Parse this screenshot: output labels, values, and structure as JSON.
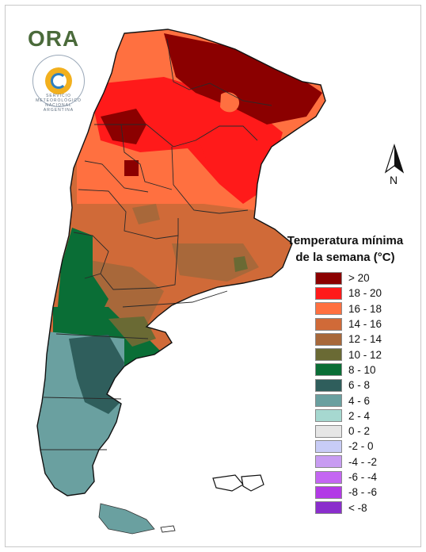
{
  "logo": {
    "text": "ORA"
  },
  "seal": {
    "text": "SERVICIO METEOROLÓGICO NACIONAL ARGENTINA"
  },
  "north_arrow": {
    "label": "N"
  },
  "legend": {
    "title_line1": "Temperatura mínima",
    "title_line2": "de la semana (°C)",
    "items": [
      {
        "label": "> 20",
        "color": "#8b0000"
      },
      {
        "label": "18 - 20",
        "color": "#ff1a1a"
      },
      {
        "label": "16 - 18",
        "color": "#ff7040"
      },
      {
        "label": "14 - 16",
        "color": "#d06a38"
      },
      {
        "label": "12 - 14",
        "color": "#a8683a"
      },
      {
        "label": "10 - 12",
        "color": "#6a6a34"
      },
      {
        "label": "8 - 10",
        "color": "#0a6e36"
      },
      {
        "label": "6 - 8",
        "color": "#2f5e5c"
      },
      {
        "label": "4 - 6",
        "color": "#6aa0a0"
      },
      {
        "label": "2 - 4",
        "color": "#a6d8d0"
      },
      {
        "label": "0 - 2",
        "color": "#e6e6e6"
      },
      {
        "label": "-2 - 0",
        "color": "#c8ccf6"
      },
      {
        "label": "-4 - -2",
        "color": "#c89cf2"
      },
      {
        "label": "-6 - -4",
        "color": "#c466f2"
      },
      {
        "label": "-8 - -6",
        "color": "#b23ae6"
      },
      {
        "label": "< -8",
        "color": "#8a2ecc"
      }
    ]
  }
}
